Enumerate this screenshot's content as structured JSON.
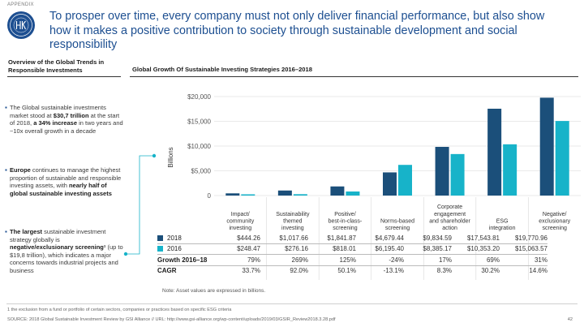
{
  "header": {
    "appendix": "APPENDIX",
    "title": "To prosper over time, every company must not only deliver financial performance, but also show how it makes a positive contribution to society through sustainable development and social responsibility"
  },
  "left": {
    "heading": "Overview of the Global Trends in Responsible Investments",
    "bullets": [
      {
        "parts": [
          {
            "t": "The Global sustainable investments market stood at ",
            "b": false
          },
          {
            "t": "$30,7 trillion",
            "b": true
          },
          {
            "t": " at the start of 2018, ",
            "b": false
          },
          {
            "t": "a 34% increase",
            "b": true
          },
          {
            "t": " in two years and ~10x overall growth in a decade",
            "b": false
          }
        ]
      },
      {
        "parts": [
          {
            "t": "Europe",
            "b": true
          },
          {
            "t": " continues to manage the highest proportion of  sustainable and responsible investing assets, with ",
            "b": false
          },
          {
            "t": "nearly half of global sustainable investing assets",
            "b": true
          }
        ]
      },
      {
        "parts": [
          {
            "t": "The largest",
            "b": true
          },
          {
            "t": " sustainable investment strategy globally is ",
            "b": false
          },
          {
            "t": "negative/exclusionary screening¹",
            "b": true
          },
          {
            "t": " (up to $19,8 trillion), which indicates a major concerns towards industrial projects and business",
            "b": false
          }
        ]
      }
    ]
  },
  "chart_data": {
    "type": "bar",
    "title": "Global Growth Of Sustainable Investing Strategies 2016–2018",
    "ylabel": "Billions",
    "ylim": [
      0,
      20000
    ],
    "yticks": [
      "$20,000",
      "$15,000",
      "$10,000",
      "$5,000",
      "0"
    ],
    "categories": [
      [
        "Impact/",
        "community",
        "investing"
      ],
      [
        "Sustainability",
        "themed",
        "investing"
      ],
      [
        "Positive/",
        "best-in-class-",
        "screening"
      ],
      [
        "Norms-based",
        "screening"
      ],
      [
        "Corporate",
        "engagement",
        "and shareholder",
        "action"
      ],
      [
        "ESG",
        "integration"
      ],
      [
        "Negative/",
        "exclusionary",
        "screening"
      ]
    ],
    "series": [
      {
        "name": "2018",
        "color": "#1b4f7a",
        "values": [
          444.26,
          1017.66,
          1841.87,
          4679.44,
          9834.59,
          17543.81,
          19770.96
        ],
        "labels": [
          "$444.26",
          "$1,017.66",
          "$1,841.87",
          "$4,679.44",
          "$9,834.59",
          "$17,543.81",
          "$19,770.96"
        ]
      },
      {
        "name": "2016",
        "color": "#17b3c9",
        "values": [
          248.47,
          276.16,
          818.01,
          6195.4,
          8385.17,
          10353.2,
          15063.57
        ],
        "labels": [
          "$248.47",
          "$276.16",
          "$818.01",
          "$6,195.40",
          "$8,385.17",
          "$10,353.20",
          "$15,063.57"
        ]
      }
    ],
    "rows": [
      {
        "label": "Growth 2016–18",
        "values": [
          "79%",
          "269%",
          "125%",
          "-24%",
          "17%",
          "69%",
          "31%"
        ]
      },
      {
        "label": "CAGR",
        "values": [
          "33.7%",
          "92.0%",
          "50.1%",
          "-13.1%",
          "8.3%",
          "30.2%",
          "14.6%"
        ]
      }
    ],
    "note": "Note: Asset values are expressed in billions."
  },
  "footer": {
    "footnote": "1 the exclusion from a fund or portfolio of certain sectors, companies or practices based on specific ESG criteria",
    "source": "SOURCE: 2018 Global Sustainable Investment Review by GSI Alliance // URL: http://www.gsi-alliance.org/wp-content/uploads/2019/03/GSIR_Review2018.3.28.pdf",
    "page": "42"
  },
  "colors": {
    "accent": "#1d4f91",
    "dark_bar": "#1b4f7a",
    "light_bar": "#17b3c9"
  }
}
